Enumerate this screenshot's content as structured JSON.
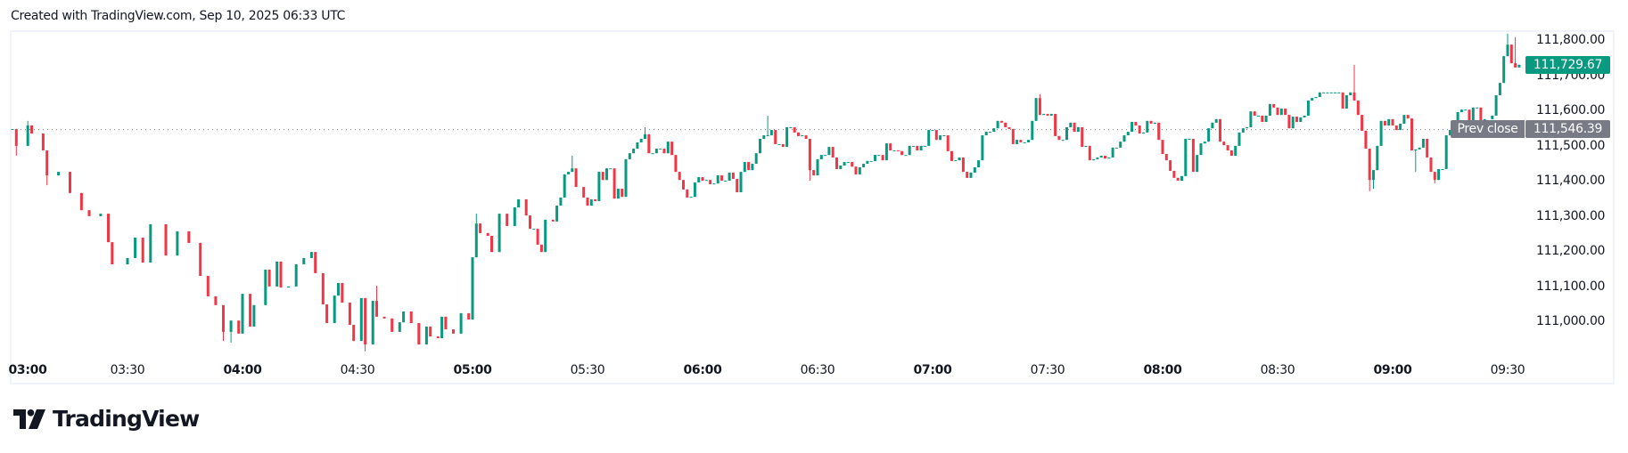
{
  "header": {
    "text": "Created with TradingView.com, Sep 10, 2025 06:33 UTC"
  },
  "logo": {
    "text": "TradingView"
  },
  "chart_data": {
    "type": "candlestick",
    "interval": "1m",
    "colors": {
      "up": "#089981",
      "down": "#F23645",
      "prev_close_line": "#787b86",
      "prev_close_badge": "#787b86"
    },
    "ylim": [
      110900,
      111830
    ],
    "grid": false,
    "y_ticks": [
      111800,
      111700,
      111600,
      111500,
      111400,
      111300,
      111200,
      111100,
      111000
    ],
    "y_tick_labels": [
      "111,800.00",
      "111,700.00",
      "111,600.00",
      "111,500.00",
      "111,400.00",
      "111,300.00",
      "111,200.00",
      "111,100.00",
      "111,000.00"
    ],
    "x_ticks": [
      {
        "label": "03:00",
        "bold": true
      },
      {
        "label": "03:30",
        "bold": false
      },
      {
        "label": "04:00",
        "bold": true
      },
      {
        "label": "04:30",
        "bold": false
      },
      {
        "label": "05:00",
        "bold": true
      },
      {
        "label": "05:30",
        "bold": false
      },
      {
        "label": "06:00",
        "bold": true
      },
      {
        "label": "06:30",
        "bold": false
      },
      {
        "label": "07:00",
        "bold": true
      },
      {
        "label": "07:30",
        "bold": false
      },
      {
        "label": "08:00",
        "bold": true
      },
      {
        "label": "08:30",
        "bold": false
      },
      {
        "label": "09:00",
        "bold": true
      },
      {
        "label": "09:30",
        "bold": false
      }
    ],
    "last_price": {
      "value": 111729.67,
      "label": "111,729.67"
    },
    "prev_close": {
      "value": 111546.39,
      "title": "Prev close",
      "label": "111,546.39"
    },
    "closes": [
      [
        "03:00",
        111547
      ],
      [
        "03:01",
        111499
      ],
      [
        "03:04",
        111557
      ],
      [
        "03:05",
        111534
      ],
      [
        "03:08",
        111486
      ],
      [
        "03:09",
        111415
      ],
      [
        "03:12",
        111425
      ],
      [
        "03:15",
        111365
      ],
      [
        "03:18",
        111316
      ],
      [
        "03:20",
        111299
      ],
      [
        "03:23",
        111306
      ],
      [
        "03:25",
        111225
      ],
      [
        "03:26",
        111162
      ],
      [
        "03:30",
        111180
      ],
      [
        "03:32",
        111238
      ],
      [
        "03:34",
        111167
      ],
      [
        "03:36",
        111276
      ],
      [
        "03:40",
        111187
      ],
      [
        "03:43",
        111256
      ],
      [
        "03:46",
        111223
      ],
      [
        "03:49",
        111129
      ],
      [
        "03:51",
        111071
      ],
      [
        "03:53",
        111046
      ],
      [
        "03:55",
        110970
      ],
      [
        "03:57",
        111002
      ],
      [
        "03:59",
        110965
      ],
      [
        "04:00",
        111078
      ],
      [
        "04:02",
        110985
      ],
      [
        "04:03",
        111046
      ],
      [
        "04:06",
        111147
      ],
      [
        "04:07",
        111099
      ],
      [
        "04:09",
        111170
      ],
      [
        "04:10",
        111096
      ],
      [
        "04:12",
        111099
      ],
      [
        "04:14",
        111162
      ],
      [
        "04:16",
        111180
      ],
      [
        "04:18",
        111197
      ],
      [
        "04:19",
        111137
      ],
      [
        "04:21",
        111048
      ],
      [
        "04:22",
        110995
      ],
      [
        "04:24",
        111073
      ],
      [
        "04:25",
        111109
      ],
      [
        "04:26",
        111053
      ],
      [
        "04:28",
        110990
      ],
      [
        "04:29",
        110944
      ],
      [
        "04:31",
        111066
      ],
      [
        "04:32",
        110934
      ],
      [
        "04:34",
        111058
      ],
      [
        "04:35",
        111013
      ],
      [
        "04:37",
        111008
      ],
      [
        "04:39",
        110970
      ],
      [
        "04:41",
        110997
      ],
      [
        "04:42",
        111028
      ],
      [
        "04:44",
        110995
      ],
      [
        "04:46",
        110934
      ],
      [
        "04:48",
        110985
      ],
      [
        "04:49",
        110957
      ],
      [
        "04:51",
        110952
      ],
      [
        "04:52",
        111013
      ],
      [
        "04:53",
        110977
      ],
      [
        "04:55",
        110965
      ],
      [
        "04:57",
        111023
      ],
      [
        "04:59",
        111005
      ],
      [
        "05:00",
        111182
      ],
      [
        "05:01",
        111278
      ],
      [
        "05:02",
        111251
      ],
      [
        "05:04",
        111243
      ],
      [
        "05:05",
        111197
      ],
      [
        "05:07",
        111306
      ],
      [
        "05:09",
        111271
      ],
      [
        "05:11",
        111324
      ],
      [
        "05:12",
        111347
      ],
      [
        "05:14",
        111301
      ],
      [
        "05:15",
        111263
      ],
      [
        "05:16",
        111263
      ],
      [
        "05:17",
        111218
      ],
      [
        "05:18",
        111197
      ],
      [
        "05:19",
        111289
      ],
      [
        "05:21",
        111284
      ],
      [
        "05:22",
        111329
      ],
      [
        "05:23",
        111352
      ],
      [
        "05:24",
        111418
      ],
      [
        "05:25",
        111425
      ],
      [
        "05:26",
        111435
      ],
      [
        "05:27",
        111382
      ],
      [
        "05:29",
        111352
      ],
      [
        "05:30",
        111329
      ],
      [
        "05:31",
        111347
      ],
      [
        "05:32",
        111342
      ],
      [
        "05:33",
        111425
      ],
      [
        "05:34",
        111402
      ],
      [
        "05:35",
        111435
      ],
      [
        "05:36",
        111435
      ],
      [
        "05:37",
        111349
      ],
      [
        "05:38",
        111377
      ],
      [
        "05:39",
        111354
      ],
      [
        "05:40",
        111461
      ],
      [
        "05:41",
        111478
      ],
      [
        "05:42",
        111491
      ],
      [
        "05:43",
        111509
      ],
      [
        "05:44",
        111519
      ],
      [
        "05:45",
        111532
      ],
      [
        "05:46",
        111478
      ],
      [
        "05:47",
        111478
      ],
      [
        "05:48",
        111491
      ],
      [
        "05:49",
        111491
      ],
      [
        "05:50",
        111478
      ],
      [
        "05:51",
        111511
      ],
      [
        "05:52",
        111473
      ],
      [
        "05:53",
        111425
      ],
      [
        "05:54",
        111402
      ],
      [
        "05:55",
        111375
      ],
      [
        "05:56",
        111352
      ],
      [
        "05:57",
        111354
      ],
      [
        "05:58",
        111395
      ],
      [
        "05:59",
        111410
      ],
      [
        "06:00",
        111400
      ],
      [
        "06:01",
        111402
      ],
      [
        "06:02",
        111390
      ],
      [
        "06:03",
        111392
      ],
      [
        "06:04",
        111415
      ],
      [
        "06:05",
        111400
      ],
      [
        "06:06",
        111400
      ],
      [
        "06:07",
        111423
      ],
      [
        "06:08",
        111405
      ],
      [
        "06:09",
        111367
      ],
      [
        "06:10",
        111425
      ],
      [
        "06:11",
        111453
      ],
      [
        "06:12",
        111430
      ],
      [
        "06:13",
        111448
      ],
      [
        "06:14",
        111478
      ],
      [
        "06:15",
        111519
      ],
      [
        "06:16",
        111529
      ],
      [
        "06:17",
        111529
      ],
      [
        "06:18",
        111544
      ],
      [
        "06:19",
        111504
      ],
      [
        "06:20",
        111504
      ],
      [
        "06:21",
        111496
      ],
      [
        "06:22",
        111552
      ],
      [
        "06:23",
        111552
      ],
      [
        "06:24",
        111537
      ],
      [
        "06:25",
        111527
      ],
      [
        "06:26",
        111529
      ],
      [
        "06:27",
        111519
      ],
      [
        "06:28",
        111430
      ],
      [
        "06:29",
        111415
      ],
      [
        "06:30",
        111461
      ],
      [
        "06:31",
        111473
      ],
      [
        "06:32",
        111473
      ],
      [
        "06:33",
        111496
      ],
      [
        "06:34",
        111466
      ],
      [
        "06:35",
        111433
      ],
      [
        "06:36",
        111443
      ],
      [
        "06:37",
        111453
      ],
      [
        "06:38",
        111453
      ],
      [
        "06:39",
        111440
      ],
      [
        "06:40",
        111418
      ],
      [
        "06:41",
        111438
      ],
      [
        "06:42",
        111448
      ],
      [
        "06:43",
        111456
      ],
      [
        "06:44",
        111456
      ],
      [
        "06:45",
        111473
      ],
      [
        "06:46",
        111473
      ],
      [
        "06:47",
        111458
      ],
      [
        "06:48",
        111506
      ],
      [
        "06:49",
        111486
      ],
      [
        "06:50",
        111486
      ],
      [
        "06:51",
        111484
      ],
      [
        "06:52",
        111473
      ],
      [
        "06:53",
        111473
      ],
      [
        "06:54",
        111499
      ],
      [
        "06:55",
        111499
      ],
      [
        "06:56",
        111486
      ],
      [
        "06:57",
        111499
      ],
      [
        "06:58",
        111499
      ],
      [
        "06:59",
        111544
      ],
      [
        "07:00",
        111544
      ],
      [
        "07:01",
        111516
      ],
      [
        "07:02",
        111529
      ],
      [
        "07:03",
        111529
      ],
      [
        "07:04",
        111484
      ],
      [
        "07:05",
        111456
      ],
      [
        "07:06",
        111458
      ],
      [
        "07:07",
        111466
      ],
      [
        "07:08",
        111425
      ],
      [
        "07:09",
        111408
      ],
      [
        "07:10",
        111423
      ],
      [
        "07:11",
        111438
      ],
      [
        "07:12",
        111458
      ],
      [
        "07:13",
        111529
      ],
      [
        "07:14",
        111539
      ],
      [
        "07:15",
        111539
      ],
      [
        "07:16",
        111549
      ],
      [
        "07:17",
        111570
      ],
      [
        "07:18",
        111565
      ],
      [
        "07:19",
        111552
      ],
      [
        "07:20",
        111547
      ],
      [
        "07:21",
        111504
      ],
      [
        "07:22",
        111516
      ],
      [
        "07:23",
        111509
      ],
      [
        "07:24",
        111509
      ],
      [
        "07:25",
        111516
      ],
      [
        "07:26",
        111570
      ],
      [
        "07:27",
        111635
      ],
      [
        "07:28",
        111587
      ],
      [
        "07:29",
        111590
      ],
      [
        "07:30",
        111585
      ],
      [
        "07:31",
        111590
      ],
      [
        "07:32",
        111527
      ],
      [
        "07:33",
        111516
      ],
      [
        "07:34",
        111516
      ],
      [
        "07:35",
        111552
      ],
      [
        "07:36",
        111565
      ],
      [
        "07:37",
        111539
      ],
      [
        "07:38",
        111552
      ],
      [
        "07:39",
        111496
      ],
      [
        "07:40",
        111499
      ],
      [
        "07:41",
        111458
      ],
      [
        "07:42",
        111461
      ],
      [
        "07:43",
        111466
      ],
      [
        "07:44",
        111471
      ],
      [
        "07:45",
        111463
      ],
      [
        "07:46",
        111466
      ],
      [
        "07:47",
        111494
      ],
      [
        "07:48",
        111494
      ],
      [
        "07:49",
        111511
      ],
      [
        "07:50",
        111529
      ],
      [
        "07:51",
        111539
      ],
      [
        "07:52",
        111567
      ],
      [
        "07:53",
        111557
      ],
      [
        "07:54",
        111534
      ],
      [
        "07:55",
        111537
      ],
      [
        "07:56",
        111570
      ],
      [
        "07:57",
        111562
      ],
      [
        "07:58",
        111565
      ],
      [
        "07:59",
        111516
      ],
      [
        "08:00",
        111476
      ],
      [
        "08:01",
        111458
      ],
      [
        "08:02",
        111428
      ],
      [
        "08:03",
        111408
      ],
      [
        "08:04",
        111400
      ],
      [
        "08:05",
        111413
      ],
      [
        "08:06",
        111519
      ],
      [
        "08:07",
        111519
      ],
      [
        "08:08",
        111425
      ],
      [
        "08:09",
        111473
      ],
      [
        "08:10",
        111506
      ],
      [
        "08:11",
        111511
      ],
      [
        "08:12",
        111549
      ],
      [
        "08:13",
        111565
      ],
      [
        "08:14",
        111575
      ],
      [
        "08:15",
        111511
      ],
      [
        "08:16",
        111501
      ],
      [
        "08:17",
        111486
      ],
      [
        "08:18",
        111471
      ],
      [
        "08:19",
        111499
      ],
      [
        "08:20",
        111537
      ],
      [
        "08:21",
        111549
      ],
      [
        "08:22",
        111552
      ],
      [
        "08:23",
        111597
      ],
      [
        "08:24",
        111585
      ],
      [
        "08:25",
        111585
      ],
      [
        "08:26",
        111567
      ],
      [
        "08:27",
        111585
      ],
      [
        "08:28",
        111618
      ],
      [
        "08:29",
        111608
      ],
      [
        "08:30",
        111587
      ],
      [
        "08:31",
        111605
      ],
      [
        "08:32",
        111587
      ],
      [
        "08:33",
        111549
      ],
      [
        "08:34",
        111582
      ],
      [
        "08:35",
        111567
      ],
      [
        "08:36",
        111580
      ],
      [
        "08:37",
        111585
      ],
      [
        "08:38",
        111628
      ],
      [
        "08:39",
        111635
      ],
      [
        "08:40",
        111638
      ],
      [
        "08:41",
        111651
      ],
      [
        "08:42",
        111651
      ],
      [
        "08:43",
        111651
      ],
      [
        "08:44",
        111651
      ],
      [
        "08:45",
        111651
      ],
      [
        "08:46",
        111651
      ],
      [
        "08:47",
        111605
      ],
      [
        "08:48",
        111643
      ],
      [
        "08:49",
        111651
      ],
      [
        "08:50",
        111628
      ],
      [
        "08:51",
        111587
      ],
      [
        "08:52",
        111542
      ],
      [
        "08:53",
        111491
      ],
      [
        "08:54",
        111402
      ],
      [
        "08:55",
        111430
      ],
      [
        "08:56",
        111499
      ],
      [
        "08:57",
        111570
      ],
      [
        "08:58",
        111557
      ],
      [
        "08:59",
        111575
      ],
      [
        "09:00",
        111557
      ],
      [
        "09:01",
        111544
      ],
      [
        "09:02",
        111562
      ],
      [
        "09:03",
        111587
      ],
      [
        "09:04",
        111577
      ],
      [
        "09:05",
        111486
      ],
      [
        "09:06",
        111489
      ],
      [
        "09:07",
        111494
      ],
      [
        "09:08",
        111519
      ],
      [
        "09:09",
        111466
      ],
      [
        "09:10",
        111425
      ],
      [
        "09:11",
        111402
      ],
      [
        "09:12",
        111433
      ],
      [
        "09:13",
        111433
      ],
      [
        "09:14",
        111529
      ],
      [
        "09:15",
        111544
      ],
      [
        "09:16",
        111570
      ],
      [
        "09:17",
        111595
      ],
      [
        "09:18",
        111602
      ],
      [
        "09:19",
        111602
      ],
      [
        "09:20",
        111567
      ],
      [
        "09:21",
        111608
      ],
      [
        "09:22",
        111608
      ],
      [
        "09:23",
        111567
      ],
      [
        "09:24",
        111575
      ],
      [
        "09:26",
        111585
      ],
      [
        "09:27",
        111643
      ],
      [
        "09:28",
        111678
      ],
      [
        "09:29",
        111754
      ],
      [
        "09:30",
        111787
      ],
      [
        "09:31",
        111734
      ],
      [
        "09:32",
        111722
      ],
      [
        "09:33",
        111729.67
      ]
    ],
    "wicks": [
      [
        "03:01",
        null,
        111471
      ],
      [
        "03:04",
        111570,
        null
      ],
      [
        "03:09",
        null,
        111387
      ],
      [
        "03:55",
        null,
        110944
      ],
      [
        "03:57",
        null,
        110939
      ],
      [
        "04:32",
        null,
        110914
      ],
      [
        "04:35",
        111101,
        null
      ],
      [
        "05:01",
        111306,
        null
      ],
      [
        "05:26",
        111471,
        null
      ],
      [
        "05:45",
        111552,
        null
      ],
      [
        "06:17",
        111585,
        null
      ],
      [
        "06:28",
        null,
        111400
      ],
      [
        "07:28",
        111646,
        null
      ],
      [
        "08:50",
        111729,
        null
      ],
      [
        "08:54",
        null,
        111370
      ],
      [
        "08:55",
        null,
        111377
      ],
      [
        "09:06",
        null,
        111425
      ],
      [
        "09:11",
        null,
        111392
      ],
      [
        "09:30",
        111818,
        null
      ],
      [
        "09:32",
        111808,
        null
      ]
    ]
  }
}
